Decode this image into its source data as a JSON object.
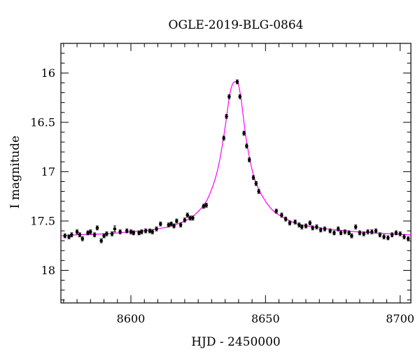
{
  "chart_data": {
    "type": "scatter",
    "title": "OGLE-2019-BLG-0864",
    "xlabel": "HJD - 2450000",
    "ylabel": "I magnitude",
    "xlim": [
      8574,
      8704
    ],
    "ylim": [
      18.33,
      15.7
    ],
    "y_inverted": true,
    "x_ticks": [
      8600,
      8650,
      8700
    ],
    "x_tick_labels": [
      "8600",
      "8650",
      "8700"
    ],
    "y_ticks": [
      16,
      16.5,
      17,
      17.5,
      18
    ],
    "y_tick_labels": [
      "16",
      "16.5",
      "17",
      "17.5",
      "18"
    ],
    "grid": false,
    "colors": {
      "model": "#ff00ff",
      "points": "#000000"
    },
    "series": [
      {
        "kind": "points_with_errorbars",
        "x": [
          8575.5,
          8577.0,
          8578.0,
          8580.0,
          8581.0,
          8582.0,
          8584.0,
          8585.0,
          8586.5,
          8587.5,
          8589.0,
          8590.0,
          8591.0,
          8593.0,
          8594.0,
          8596.0,
          8598.5,
          8600.0,
          8601.0,
          8603.0,
          8604.0,
          8605.5,
          8607.0,
          8608.0,
          8609.5,
          8611.0,
          8614.0,
          8615.0,
          8616.0,
          8617.0,
          8618.5,
          8620.0,
          8621.0,
          8622.0,
          8623.0,
          8627.0,
          8628.0,
          8634.5,
          8635.5,
          8636.5,
          8639.5,
          8640.5,
          8642.0,
          8643.0,
          8644.0,
          8645.5,
          8646.5,
          8647.5,
          8654.0,
          8656.0,
          8657.5,
          8659.0,
          8661.0,
          8662.5,
          8663.5,
          8665.0,
          8666.5,
          8667.5,
          8669.0,
          8670.5,
          8672.0,
          8674.0,
          8675.5,
          8677.0,
          8678.0,
          8679.5,
          8681.0,
          8682.0,
          8683.5,
          8685.0,
          8686.5,
          8688.0,
          8689.5,
          8691.0,
          8692.5,
          8694.0,
          8695.5,
          8697.0,
          8698.5,
          8700.0,
          8701.5,
          8703.0
        ],
        "y": [
          17.65,
          17.66,
          17.64,
          17.61,
          17.64,
          17.68,
          17.62,
          17.61,
          17.64,
          17.57,
          17.7,
          17.65,
          17.63,
          17.63,
          17.58,
          17.61,
          17.6,
          17.61,
          17.62,
          17.62,
          17.61,
          17.6,
          17.6,
          17.61,
          17.58,
          17.53,
          17.54,
          17.53,
          17.55,
          17.5,
          17.54,
          17.49,
          17.44,
          17.47,
          17.47,
          17.35,
          17.34,
          16.66,
          16.44,
          16.24,
          16.09,
          16.24,
          16.61,
          16.74,
          16.88,
          17.06,
          17.12,
          17.2,
          17.4,
          17.44,
          17.48,
          17.52,
          17.51,
          17.54,
          17.56,
          17.55,
          17.52,
          17.57,
          17.56,
          17.59,
          17.58,
          17.6,
          17.62,
          17.58,
          17.62,
          17.61,
          17.62,
          17.65,
          17.56,
          17.62,
          17.63,
          17.61,
          17.61,
          17.6,
          17.64,
          17.66,
          17.67,
          17.64,
          17.62,
          17.63,
          17.66,
          17.68
        ],
        "yerr": [
          0.02,
          0.02,
          0.02,
          0.02,
          0.02,
          0.02,
          0.02,
          0.02,
          0.02,
          0.02,
          0.02,
          0.02,
          0.02,
          0.02,
          0.03,
          0.02,
          0.02,
          0.02,
          0.02,
          0.02,
          0.02,
          0.02,
          0.02,
          0.02,
          0.02,
          0.02,
          0.02,
          0.02,
          0.02,
          0.02,
          0.02,
          0.02,
          0.02,
          0.02,
          0.02,
          0.02,
          0.02,
          0.02,
          0.02,
          0.02,
          0.02,
          0.02,
          0.02,
          0.02,
          0.02,
          0.02,
          0.02,
          0.02,
          0.02,
          0.02,
          0.02,
          0.02,
          0.02,
          0.02,
          0.02,
          0.02,
          0.02,
          0.02,
          0.02,
          0.02,
          0.02,
          0.02,
          0.02,
          0.02,
          0.02,
          0.02,
          0.02,
          0.02,
          0.02,
          0.02,
          0.02,
          0.02,
          0.02,
          0.02,
          0.02,
          0.02,
          0.02,
          0.02,
          0.02,
          0.02,
          0.02,
          0.02
        ]
      },
      {
        "kind": "model_curve",
        "x": [
          8574,
          8580,
          8590,
          8600,
          8610,
          8615,
          8620,
          8624,
          8628,
          8631,
          8633,
          8635,
          8636,
          8637,
          8638,
          8639,
          8639.5,
          8640,
          8641,
          8642,
          8643,
          8645,
          8647,
          8650,
          8653,
          8657,
          8662,
          8670,
          8680,
          8690,
          8704
        ],
        "y": [
          17.65,
          17.64,
          17.63,
          17.61,
          17.58,
          17.55,
          17.5,
          17.43,
          17.3,
          17.1,
          16.88,
          16.55,
          16.35,
          16.18,
          16.1,
          16.09,
          16.09,
          16.12,
          16.28,
          16.5,
          16.7,
          16.98,
          17.15,
          17.3,
          17.4,
          17.47,
          17.53,
          17.57,
          17.6,
          17.62,
          17.64
        ]
      }
    ]
  }
}
